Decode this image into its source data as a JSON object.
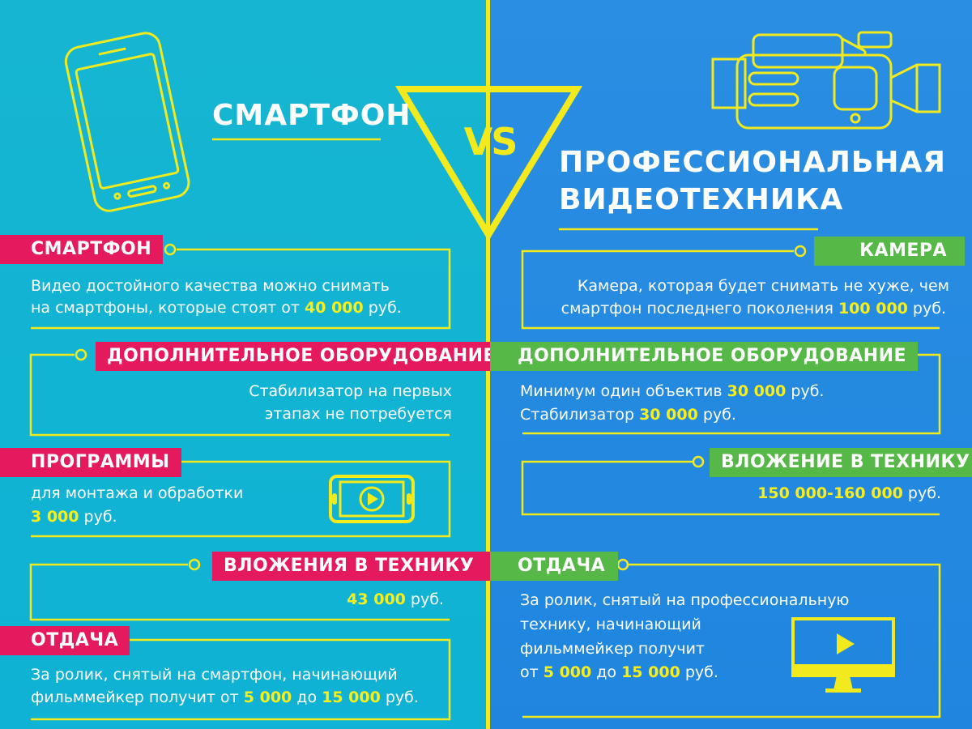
{
  "vs": "VS",
  "left": {
    "title": "СМАРТФОН",
    "blocks": [
      {
        "label": "СМАРТФОН",
        "line1": "Видео достойного качества можно снимать",
        "line2_pre": "на смартфоны, которые стоят от ",
        "line2_val": "40 000",
        "line2_post": " руб."
      },
      {
        "label": "ДОПОЛНИТЕЛЬНОЕ ОБОРУДОВАНИЕ",
        "line1": "Стабилизатор на первых",
        "line2": "этапах не потребуется"
      },
      {
        "label": "ПРОГРАММЫ",
        "line1": "для монтажа и обработки",
        "val": "3 000",
        "unit": " руб."
      },
      {
        "label": "ВЛОЖЕНИЯ В ТЕХНИКУ",
        "val": "43 000",
        "unit": " руб."
      },
      {
        "label": "ОТДАЧА",
        "line1": "За ролик, снятый на смартфон, начинающий",
        "line2_pre": "фильммейкер получит от ",
        "v1": "5 000",
        "mid": " до ",
        "v2": "15 000",
        "post": " руб."
      }
    ]
  },
  "right": {
    "title_line1": "ПРОФЕССИОНАЛЬНАЯ",
    "title_line2": "ВИДЕОТЕХНИКА",
    "blocks": [
      {
        "label": "КАМЕРА",
        "line1": "Камера, которая будет снимать не хуже, чем",
        "line2_pre": "смартфон последнего поколения ",
        "line2_val": "100 000",
        "line2_post": " руб."
      },
      {
        "label": "ДОПОЛНИТЕЛЬНОЕ ОБОРУДОВАНИЕ",
        "line1_pre": "Минимум один объектив ",
        "line1_val": "30 000",
        "line1_post": " руб.",
        "line2_pre": "Стабилизатор  ",
        "line2_val": "30 000",
        "line2_post": " руб."
      },
      {
        "label": "ВЛОЖЕНИЕ В ТЕХНИКУ",
        "val": "150 000-160 000",
        "unit": " руб."
      },
      {
        "label": "ОТДАЧА",
        "line1": "За ролик, снятый на профессиональную",
        "line2": "технику, начинающий",
        "line3": "фильммейкер получит",
        "pre": "от ",
        "v1": "5 000",
        "mid": " до ",
        "v2": "15 000",
        "post": " руб."
      }
    ]
  },
  "colors": {
    "left_bg": "#16b6d2",
    "right_bg": "#2a8ee2",
    "accent": "#f2ea1c",
    "pink": "#e5195e",
    "green": "#55b847"
  }
}
